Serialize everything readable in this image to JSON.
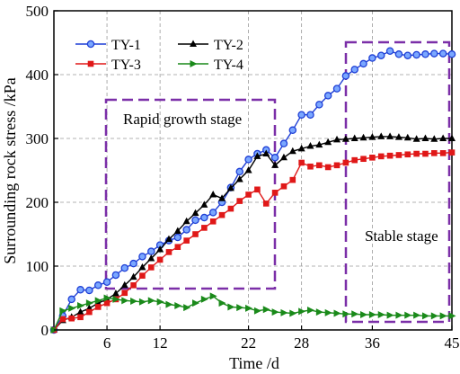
{
  "chart_data": {
    "type": "line",
    "xlabel": "Time /d",
    "ylabel": "Surrounding rock stress /kPa",
    "xlim": [
      0,
      45
    ],
    "ylim": [
      0,
      500
    ],
    "x_ticks": [
      "6",
      "12",
      "22",
      "28",
      "36",
      "45"
    ],
    "y_ticks": [
      "0",
      "100",
      "200",
      "300",
      "400",
      "500"
    ],
    "grid": true,
    "legend_position": "top-left",
    "annotations": [
      {
        "label": "Rapid growth stage"
      },
      {
        "label": "Stable stage"
      }
    ],
    "series": [
      {
        "name": "TY-1",
        "color": "#1f3fd6",
        "marker": "circle",
        "points": [
          [
            0,
            0
          ],
          [
            1,
            22
          ],
          [
            2,
            48
          ],
          [
            3,
            63
          ],
          [
            4,
            62
          ],
          [
            5,
            70
          ],
          [
            6,
            75
          ],
          [
            7,
            86
          ],
          [
            8,
            97
          ],
          [
            9,
            104
          ],
          [
            10,
            115
          ],
          [
            11,
            123
          ],
          [
            12,
            133
          ],
          [
            13,
            140
          ],
          [
            14,
            145
          ],
          [
            15,
            157
          ],
          [
            16,
            172
          ],
          [
            17,
            176
          ],
          [
            18,
            184
          ],
          [
            19,
            200
          ],
          [
            20,
            223
          ],
          [
            21,
            248
          ],
          [
            22,
            267
          ],
          [
            23,
            276
          ],
          [
            24,
            282
          ],
          [
            25,
            270
          ],
          [
            26,
            292
          ],
          [
            27,
            313
          ],
          [
            28,
            337
          ],
          [
            29,
            337
          ],
          [
            30,
            353
          ],
          [
            31,
            367
          ],
          [
            32,
            378
          ],
          [
            33,
            398
          ],
          [
            34,
            408
          ],
          [
            35,
            417
          ],
          [
            36,
            426
          ],
          [
            37,
            430
          ],
          [
            38,
            437
          ],
          [
            39,
            432
          ],
          [
            40,
            430
          ],
          [
            41,
            431
          ],
          [
            42,
            432
          ],
          [
            43,
            433
          ],
          [
            44,
            433
          ],
          [
            45,
            432
          ]
        ]
      },
      {
        "name": "TY-2",
        "color": "#000000",
        "marker": "triangle-up",
        "points": [
          [
            0,
            0
          ],
          [
            1,
            15
          ],
          [
            2,
            20
          ],
          [
            3,
            28
          ],
          [
            4,
            34
          ],
          [
            5,
            42
          ],
          [
            6,
            48
          ],
          [
            7,
            57
          ],
          [
            8,
            70
          ],
          [
            9,
            83
          ],
          [
            10,
            98
          ],
          [
            11,
            112
          ],
          [
            12,
            126
          ],
          [
            13,
            142
          ],
          [
            14,
            155
          ],
          [
            15,
            170
          ],
          [
            16,
            183
          ],
          [
            17,
            196
          ],
          [
            18,
            212
          ],
          [
            19,
            206
          ],
          [
            20,
            222
          ],
          [
            21,
            236
          ],
          [
            22,
            250
          ],
          [
            23,
            272
          ],
          [
            24,
            276
          ],
          [
            25,
            258
          ],
          [
            26,
            270
          ],
          [
            27,
            280
          ],
          [
            28,
            284
          ],
          [
            29,
            288
          ],
          [
            30,
            290
          ],
          [
            31,
            294
          ],
          [
            32,
            298
          ],
          [
            33,
            299
          ],
          [
            34,
            300
          ],
          [
            35,
            301
          ],
          [
            36,
            302
          ],
          [
            37,
            303
          ],
          [
            38,
            303
          ],
          [
            39,
            302
          ],
          [
            40,
            301
          ],
          [
            41,
            299
          ],
          [
            42,
            300
          ],
          [
            43,
            299
          ],
          [
            44,
            300
          ],
          [
            45,
            300
          ]
        ]
      },
      {
        "name": "TY-3",
        "color": "#e01818",
        "marker": "square",
        "points": [
          [
            0,
            0
          ],
          [
            1,
            17
          ],
          [
            2,
            18
          ],
          [
            3,
            20
          ],
          [
            4,
            28
          ],
          [
            5,
            36
          ],
          [
            6,
            42
          ],
          [
            7,
            48
          ],
          [
            8,
            58
          ],
          [
            9,
            70
          ],
          [
            10,
            85
          ],
          [
            11,
            98
          ],
          [
            12,
            110
          ],
          [
            13,
            122
          ],
          [
            14,
            130
          ],
          [
            15,
            140
          ],
          [
            16,
            150
          ],
          [
            17,
            160
          ],
          [
            18,
            170
          ],
          [
            19,
            180
          ],
          [
            20,
            190
          ],
          [
            21,
            202
          ],
          [
            22,
            212
          ],
          [
            23,
            220
          ],
          [
            24,
            198
          ],
          [
            25,
            215
          ],
          [
            26,
            225
          ],
          [
            27,
            235
          ],
          [
            28,
            262
          ],
          [
            29,
            256
          ],
          [
            30,
            258
          ],
          [
            31,
            255
          ],
          [
            32,
            258
          ],
          [
            33,
            262
          ],
          [
            34,
            266
          ],
          [
            35,
            268
          ],
          [
            36,
            270
          ],
          [
            37,
            272
          ],
          [
            38,
            273
          ],
          [
            39,
            274
          ],
          [
            40,
            275
          ],
          [
            41,
            276
          ],
          [
            42,
            276
          ],
          [
            43,
            277
          ],
          [
            44,
            277
          ],
          [
            45,
            278
          ]
        ]
      },
      {
        "name": "TY-4",
        "color": "#1a8a1a",
        "marker": "triangle-right",
        "points": [
          [
            0,
            0
          ],
          [
            1,
            30
          ],
          [
            2,
            34
          ],
          [
            3,
            38
          ],
          [
            4,
            42
          ],
          [
            5,
            46
          ],
          [
            6,
            50
          ],
          [
            7,
            48
          ],
          [
            8,
            46
          ],
          [
            9,
            45
          ],
          [
            10,
            44
          ],
          [
            11,
            46
          ],
          [
            12,
            44
          ],
          [
            13,
            40
          ],
          [
            14,
            38
          ],
          [
            15,
            35
          ],
          [
            16,
            42
          ],
          [
            17,
            48
          ],
          [
            18,
            53
          ],
          [
            19,
            42
          ],
          [
            20,
            36
          ],
          [
            21,
            35
          ],
          [
            22,
            34
          ],
          [
            23,
            30
          ],
          [
            24,
            32
          ],
          [
            25,
            28
          ],
          [
            26,
            27
          ],
          [
            27,
            26
          ],
          [
            28,
            29
          ],
          [
            29,
            31
          ],
          [
            30,
            28
          ],
          [
            31,
            27
          ],
          [
            32,
            26
          ],
          [
            33,
            25
          ],
          [
            34,
            25
          ],
          [
            35,
            24
          ],
          [
            36,
            24
          ],
          [
            37,
            24
          ],
          [
            38,
            23
          ],
          [
            39,
            23
          ],
          [
            40,
            23
          ],
          [
            41,
            23
          ],
          [
            42,
            22
          ],
          [
            43,
            22
          ],
          [
            44,
            22
          ],
          [
            45,
            22
          ]
        ]
      }
    ]
  }
}
